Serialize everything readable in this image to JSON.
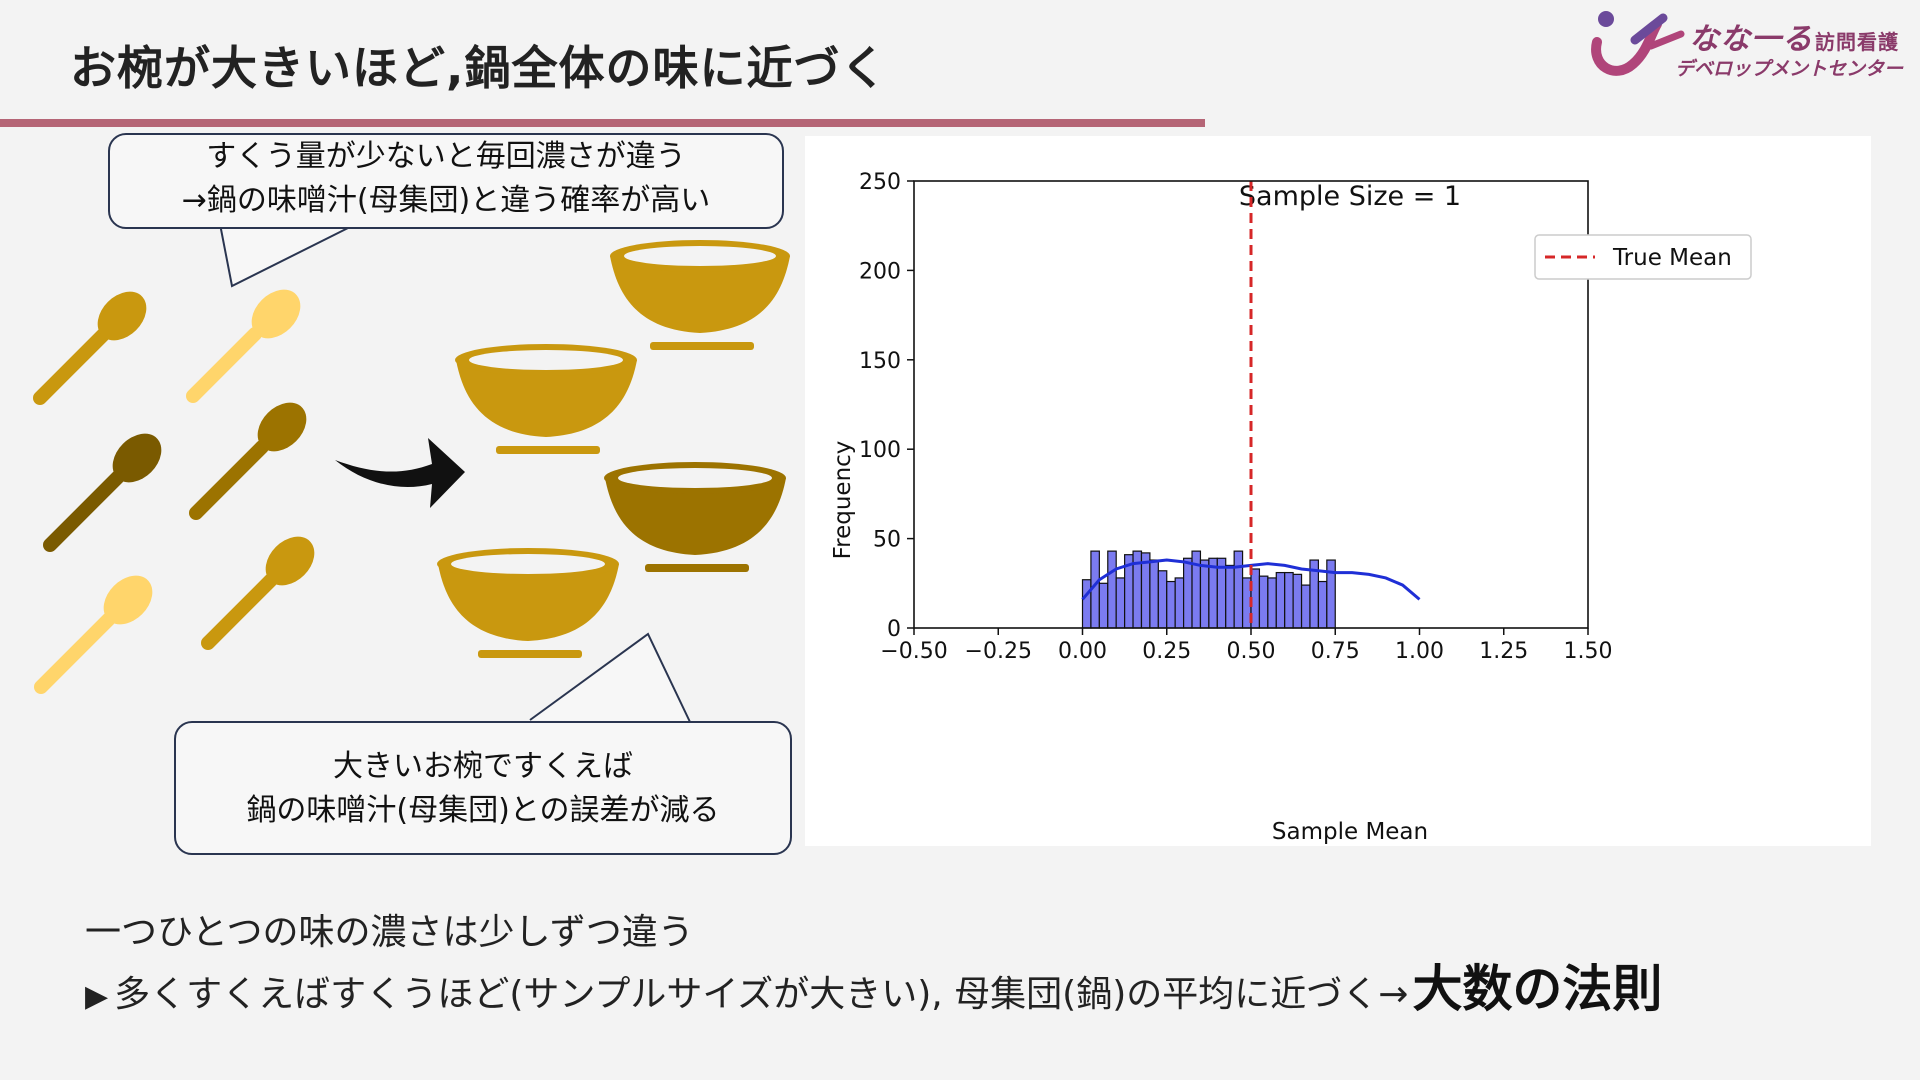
{
  "slide": {
    "title": "お椀が大きいほど,鍋全体の味に近づく"
  },
  "logo": {
    "main": "なな一る",
    "small": "訪問看護",
    "sub": "デベロップメントセンター"
  },
  "bubbles": {
    "top": [
      "すくう量が少ないと毎回濃さが違う",
      "→鍋の味噌汁(母集団)と違う確率が高い"
    ],
    "bottom": [
      "大きいお椀ですくえば",
      "鍋の味噌汁(母集団)との誤差が減る"
    ]
  },
  "notes": {
    "line1": "一つひとつの味の濃さは少しずつ違う",
    "line2_marker": "▶",
    "line2_text": "多くすくえばすくうほど(サンプルサイズが大きい), 母集団(鍋)の平均に近づく→",
    "line2_emphasis": "大数の法則"
  },
  "colors": {
    "accent_rule": "#b56576",
    "spoon_gold": "#c9980f",
    "spoon_light": "#ffd56b",
    "spoon_dark": "#7a5a00",
    "bowl_gold": "#c9980f",
    "bowl_dark": "#9c7300",
    "hist_fill": "#7b7bf0",
    "kde_line": "#1f2fd6",
    "mean_line": "#d62728"
  },
  "chart_data": {
    "type": "bar",
    "title": "Sample Size = 1",
    "xlabel": "Sample Mean",
    "ylabel": "Frequency",
    "xlim": [
      -0.5,
      1.5
    ],
    "ylim": [
      0,
      250
    ],
    "xticks": [
      "−0.50",
      "−0.25",
      "0.00",
      "0.25",
      "0.50",
      "0.75",
      "1.00",
      "1.25",
      "1.50"
    ],
    "yticks": [
      "0",
      "50",
      "100",
      "150",
      "200",
      "250"
    ],
    "bin_start": 0.0,
    "bin_width": 0.025,
    "values": [
      27,
      43,
      25,
      43,
      28,
      41,
      43,
      42,
      38,
      32,
      26,
      28,
      39,
      43,
      38,
      39,
      39,
      35,
      43,
      28,
      33,
      29,
      28,
      31,
      31,
      30,
      24,
      38,
      26,
      38
    ],
    "kde": {
      "x": [
        0.0,
        0.05,
        0.1,
        0.15,
        0.2,
        0.25,
        0.3,
        0.35,
        0.4,
        0.45,
        0.5,
        0.55,
        0.6,
        0.65,
        0.7,
        0.75,
        0.8,
        0.85,
        0.9,
        0.95,
        1.0
      ],
      "y": [
        16,
        27,
        33,
        36,
        37,
        38,
        37,
        35,
        34,
        34,
        35,
        36,
        35,
        33,
        32,
        31,
        31,
        30,
        28,
        24,
        16
      ]
    },
    "mean_line": {
      "x": 0.5,
      "label": "True Mean"
    },
    "legend": "top-right",
    "grid": false
  }
}
